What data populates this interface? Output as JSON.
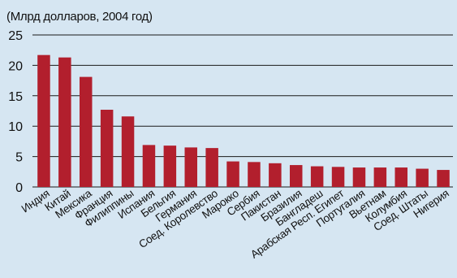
{
  "chart_data": {
    "type": "bar",
    "unit_label": "(Млрд долларов, 2004 год)",
    "title": "",
    "xlabel": "",
    "ylabel": "",
    "ylim": [
      0,
      25
    ],
    "yticks": [
      0,
      5,
      10,
      15,
      20,
      25
    ],
    "grid": true,
    "categories": [
      "Индия",
      "Китай",
      "Мексика",
      "Франция",
      "Филиппины",
      "Испания",
      "Бельгия",
      "Германия",
      "Соед. Королевство",
      "Марокко",
      "Сербия",
      "Пакистан",
      "Бразилия",
      "Бангладеш",
      "Арабская Респ. Египет",
      "Португалия",
      "Вьетнам",
      "Колумбия",
      "Соед. Штаты",
      "Нигерия"
    ],
    "values": [
      21.7,
      21.3,
      18.1,
      12.7,
      11.6,
      6.9,
      6.8,
      6.5,
      6.4,
      4.2,
      4.1,
      3.9,
      3.6,
      3.4,
      3.3,
      3.2,
      3.2,
      3.2,
      3.0,
      2.8
    ],
    "bar_color": "#b21f2d",
    "background_color": "#d6e6f2"
  }
}
